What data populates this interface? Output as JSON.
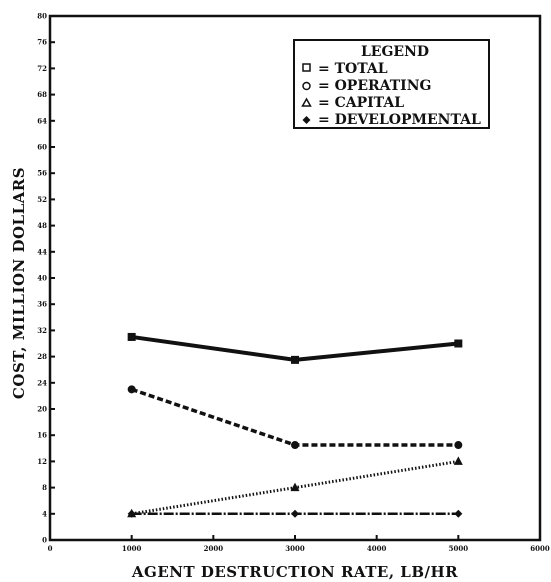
{
  "chart_data": {
    "type": "line",
    "xlabel": "AGENT DESTRUCTION RATE, LB/HR",
    "ylabel": "COST, MILLION DOLLARS",
    "xlim": [
      0,
      6000
    ],
    "ylim": [
      0,
      80
    ],
    "x_ticks": [
      0,
      1000,
      2000,
      3000,
      4000,
      5000,
      6000
    ],
    "y_ticks": [
      0,
      4,
      8,
      12,
      16,
      20,
      24,
      28,
      32,
      36,
      40,
      44,
      48,
      52,
      56,
      60,
      64,
      68,
      72,
      76,
      80
    ],
    "x": [
      1000,
      3000,
      5000
    ],
    "series": [
      {
        "name": "TOTAL",
        "values": [
          31,
          27.5,
          30
        ],
        "marker": "square",
        "style": "solid"
      },
      {
        "name": "OPERATING",
        "values": [
          23,
          14.5,
          14.5
        ],
        "marker": "circle",
        "style": "dashed"
      },
      {
        "name": "CAPITAL",
        "values": [
          4,
          8,
          12
        ],
        "marker": "triangle",
        "style": "dotted"
      },
      {
        "name": "DEVELOPMENTAL",
        "values": [
          4,
          4,
          4
        ],
        "marker": "diamond",
        "style": "dashdot"
      }
    ],
    "legend": {
      "title": "LEGEND",
      "placement": "top-right",
      "entries": [
        "= TOTAL",
        "= OPERATING",
        "= CAPITAL",
        "= DEVELOPMENTAL"
      ]
    },
    "grid": false
  }
}
